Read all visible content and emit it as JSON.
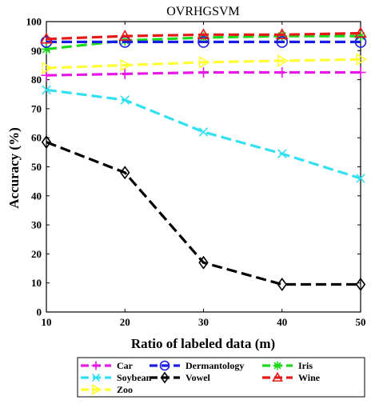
{
  "chart_data": {
    "type": "line",
    "title": "OVRHGSVM",
    "xlabel": "Ratio of labeled data (m)",
    "ylabel": "Accuracy (%)",
    "x": [
      10,
      20,
      30,
      40,
      50
    ],
    "xlim": [
      10,
      50
    ],
    "ylim": [
      0,
      100
    ],
    "xticks": [
      10,
      20,
      30,
      40,
      50
    ],
    "yticks": [
      0,
      10,
      20,
      30,
      40,
      50,
      60,
      70,
      80,
      90,
      100
    ],
    "grid": false,
    "legend_position": "bottom",
    "series": [
      {
        "name": "Car",
        "color": "#e619e6",
        "marker": "plus",
        "values": [
          81.5,
          82.0,
          82.5,
          82.5,
          82.5
        ]
      },
      {
        "name": "Dermantology",
        "color": "#1a1ae6",
        "marker": "circle",
        "values": [
          93.0,
          93.0,
          93.0,
          93.0,
          93.0
        ]
      },
      {
        "name": "Iris",
        "color": "#19d919",
        "marker": "asterisk",
        "values": [
          90.5,
          93.5,
          94.5,
          95.0,
          95.0
        ]
      },
      {
        "name": "Soybean",
        "color": "#33e0f0",
        "marker": "cross",
        "values": [
          76.5,
          73.0,
          62.0,
          54.5,
          46.0
        ]
      },
      {
        "name": "Vowel",
        "color": "#000000",
        "marker": "diamond",
        "values": [
          58.5,
          48.0,
          17.0,
          9.5,
          9.5
        ]
      },
      {
        "name": "Wine",
        "color": "#e61919",
        "marker": "triangle",
        "values": [
          94.0,
          95.0,
          95.5,
          95.5,
          96.0
        ]
      },
      {
        "name": "Zoo",
        "color": "#ffff33",
        "marker": "triangle-right",
        "values": [
          84.0,
          85.0,
          86.0,
          86.5,
          87.0
        ]
      }
    ]
  }
}
